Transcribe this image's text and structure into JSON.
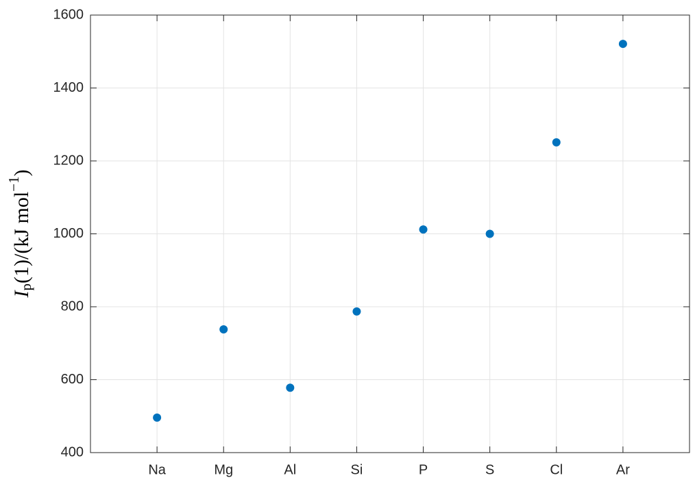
{
  "chart_data": {
    "type": "scatter",
    "ylabel": [
      "I",
      "p",
      "(1)/(kJ mol",
      "−1",
      ")"
    ],
    "categories": [
      "Na",
      "Mg",
      "Al",
      "Si",
      "P",
      "S",
      "Cl",
      "Ar"
    ],
    "values": [
      496,
      738,
      578,
      787,
      1012,
      1000,
      1251,
      1521
    ],
    "color": "#0072bd",
    "ylim": [
      400,
      1600
    ],
    "yticks": [
      400,
      600,
      800,
      1000,
      1200,
      1400,
      1600
    ],
    "grid": true
  }
}
